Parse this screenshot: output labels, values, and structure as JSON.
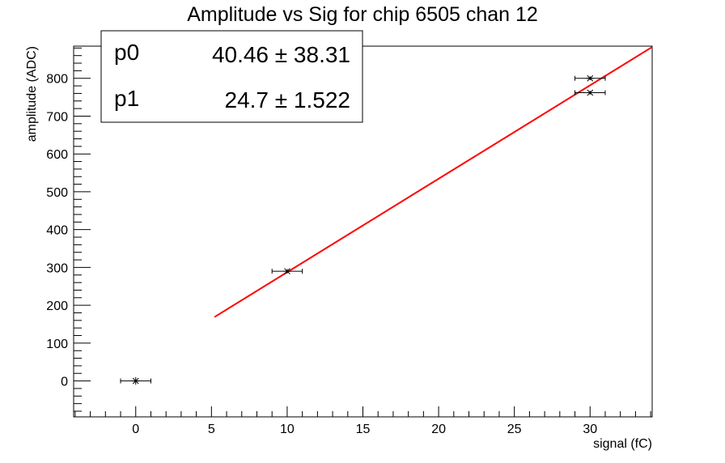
{
  "colors": {
    "fit_line": "#ff0000",
    "points": "#000000",
    "frame": "#000000",
    "background": "#ffffff"
  },
  "stats_box": {
    "rows": [
      {
        "name": "p0",
        "value": "40.46 ± 38.31"
      },
      {
        "name": "p1",
        "value": "24.7 ± 1.522"
      }
    ]
  },
  "chart_data": {
    "type": "scatter",
    "title": "Amplitude vs Sig for chip 6505 chan 12",
    "xlabel": "signal (fC)",
    "ylabel": "amplitude (ADC)",
    "xlim": [
      -4.1,
      34.1
    ],
    "ylim": [
      -95,
      885
    ],
    "x_ticks": [
      0,
      5,
      10,
      15,
      20,
      25,
      30
    ],
    "y_ticks": [
      0,
      100,
      200,
      300,
      400,
      500,
      600,
      700,
      800
    ],
    "grid": false,
    "series": [
      {
        "type": "points_with_errors",
        "points": [
          {
            "x": 0,
            "y": 0,
            "xerr": 1.0,
            "yerr": 10
          },
          {
            "x": 10,
            "y": 290,
            "xerr": 1.0,
            "yerr": 6
          },
          {
            "x": 30,
            "y": 800,
            "xerr": 1.0,
            "yerr": 5
          },
          {
            "x": 30,
            "y": 762,
            "xerr": 1.0,
            "yerr": 5
          }
        ]
      },
      {
        "type": "fit_line",
        "p0": 40.46,
        "p1": 24.7,
        "x_range": [
          5.2,
          34.1
        ]
      }
    ]
  }
}
